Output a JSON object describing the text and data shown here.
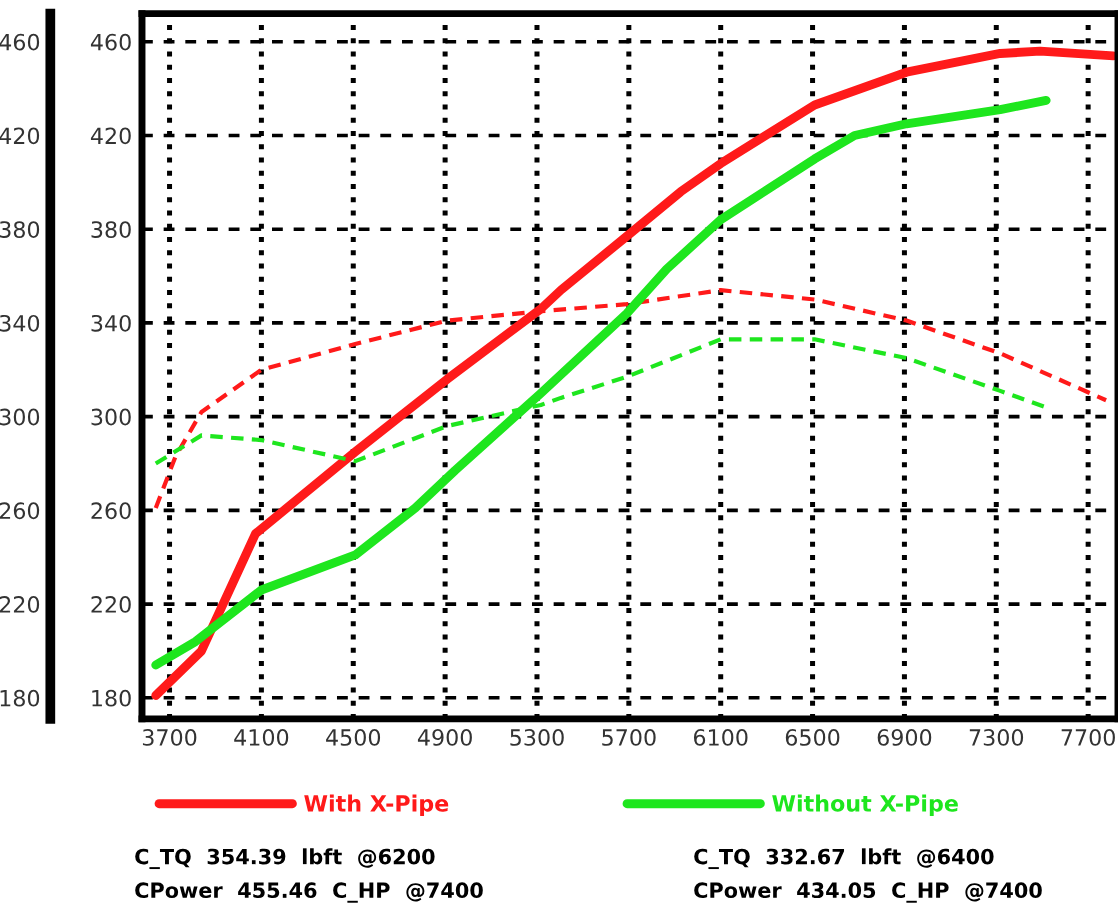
{
  "chart_data": {
    "type": "line",
    "x": [
      3640,
      3839,
      4074,
      4509,
      4909,
      5317,
      5404,
      5691,
      5926,
      6100,
      6509,
      6909,
      7317,
      7491,
      7810
    ],
    "series": [
      {
        "name": "With X-Pipe",
        "color": "#ff1a1a",
        "line_style": "solid",
        "values": [
          181,
          200,
          250,
          285,
          316,
          346,
          354,
          377,
          396,
          408,
          433,
          447,
          455,
          456,
          454
        ]
      },
      {
        "color": "#ff1a1a",
        "line_style": "dashed",
        "x": [
          3640,
          3726,
          3839,
          4100,
          4509,
          4909,
          5317,
          5691,
          6100,
          6509,
          6909,
          7317,
          7778
        ],
        "values": [
          261,
          283,
          302,
          320,
          331,
          341,
          345,
          348,
          354,
          350,
          341,
          327,
          307
        ]
      },
      {
        "name": "Without X-Pipe",
        "color": "#1ee61e",
        "line_style": "solid",
        "x": [
          3640,
          3813,
          4100,
          4509,
          4770,
          4943,
          5317,
          5570,
          5691,
          5865,
          6100,
          6509,
          6683,
          6909,
          7317,
          7517
        ],
        "values": [
          194,
          204,
          226,
          241,
          261,
          277,
          310,
          333,
          344,
          363,
          384,
          410,
          420,
          425,
          431,
          435
        ]
      },
      {
        "color": "#1ee61e",
        "line_style": "dashed",
        "x": [
          3640,
          3839,
          4100,
          4509,
          4909,
          5317,
          5404,
          5691,
          6100,
          6509,
          6909,
          7317,
          7517
        ],
        "values": [
          280,
          292,
          290,
          281,
          296,
          305,
          308,
          317,
          333,
          333,
          325,
          311,
          304
        ]
      }
    ],
    "xlim": [
      3580,
      7830
    ],
    "xticks": [
      3700,
      4100,
      4500,
      4900,
      5300,
      5700,
      6100,
      6500,
      6900,
      7300,
      7700
    ],
    "ylim": [
      171,
      472
    ],
    "yticks": [
      180,
      220,
      260,
      300,
      340,
      380,
      420,
      460
    ],
    "y2lim": [
      171,
      472
    ],
    "y2ticks": [
      180,
      220,
      260,
      300,
      340,
      380,
      420,
      460
    ],
    "grid": true,
    "legend": "bottom",
    "annotations": [
      "C_TQ  354.39  lbft  @6200",
      "CPower  455.46  C_HP  @7400",
      "C_TQ  332.67  lbft  @6400",
      "CPower  434.05  C_HP  @7400"
    ]
  }
}
